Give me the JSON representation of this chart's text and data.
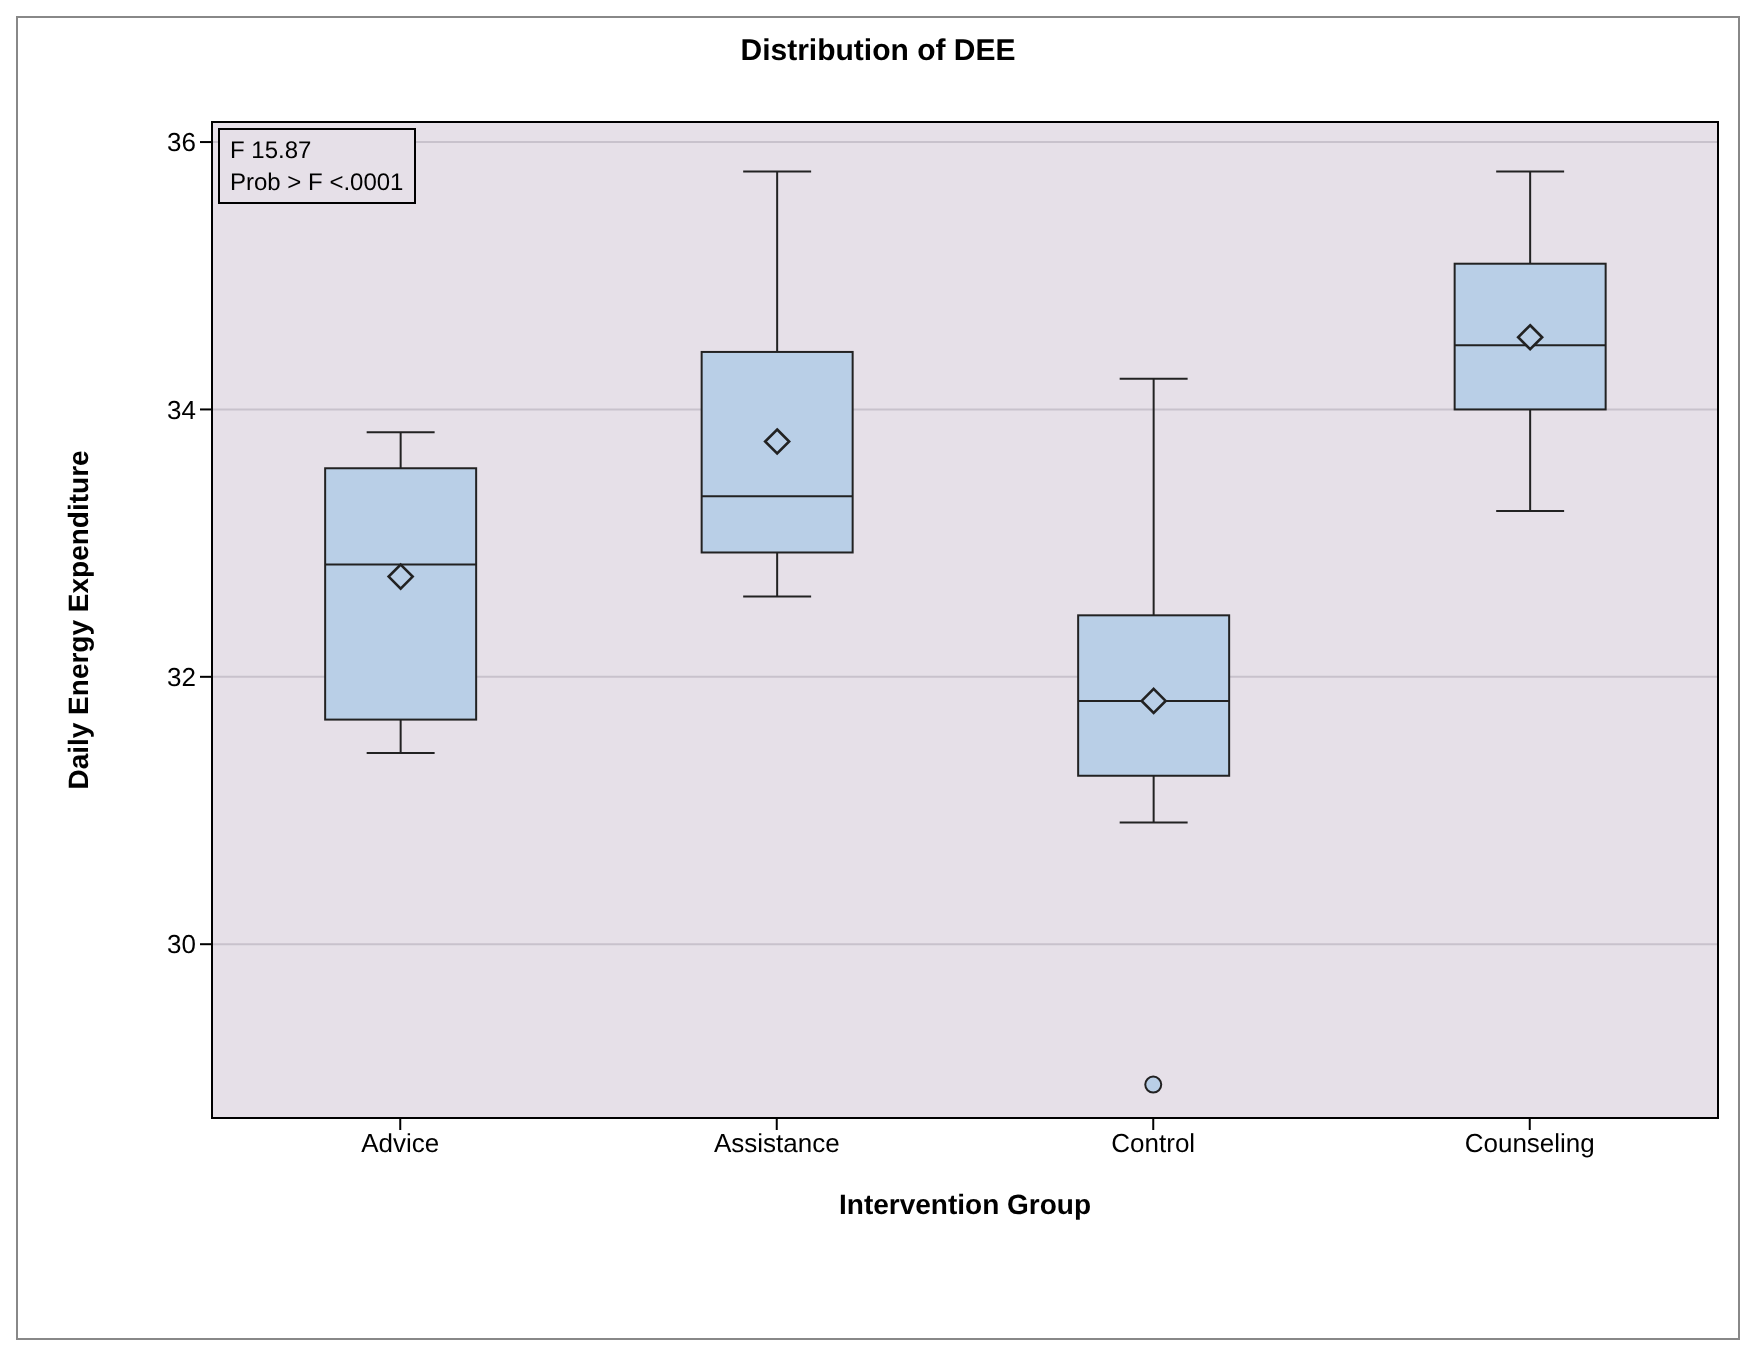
{
  "chart_data": {
    "type": "box",
    "title": "Distribution of DEE",
    "xlabel": "Intervention Group",
    "ylabel": "Daily Energy Expenditure",
    "categories": [
      "Advice",
      "Assistance",
      "Control",
      "Counseling"
    ],
    "boxes": [
      {
        "low": 31.43,
        "q1": 31.68,
        "median": 32.84,
        "q3": 33.56,
        "high": 33.83,
        "mean": 32.75
      },
      {
        "low": 32.6,
        "q1": 32.93,
        "median": 33.35,
        "q3": 34.43,
        "high": 35.78,
        "mean": 33.76
      },
      {
        "low": 30.91,
        "q1": 31.26,
        "median": 31.82,
        "q3": 32.46,
        "high": 34.23,
        "mean": 31.82,
        "outliers": [
          28.95
        ]
      },
      {
        "low": 33.24,
        "q1": 34.0,
        "median": 34.48,
        "q3": 35.09,
        "high": 35.78,
        "mean": 34.54
      }
    ],
    "color": "#b9cfe7",
    "ylim": [
      28.7,
      36.15
    ],
    "yticks": [
      30,
      32,
      34,
      36
    ],
    "grid": "y",
    "annotations": [
      "F 15.87",
      "Prob > F <.0001"
    ]
  }
}
